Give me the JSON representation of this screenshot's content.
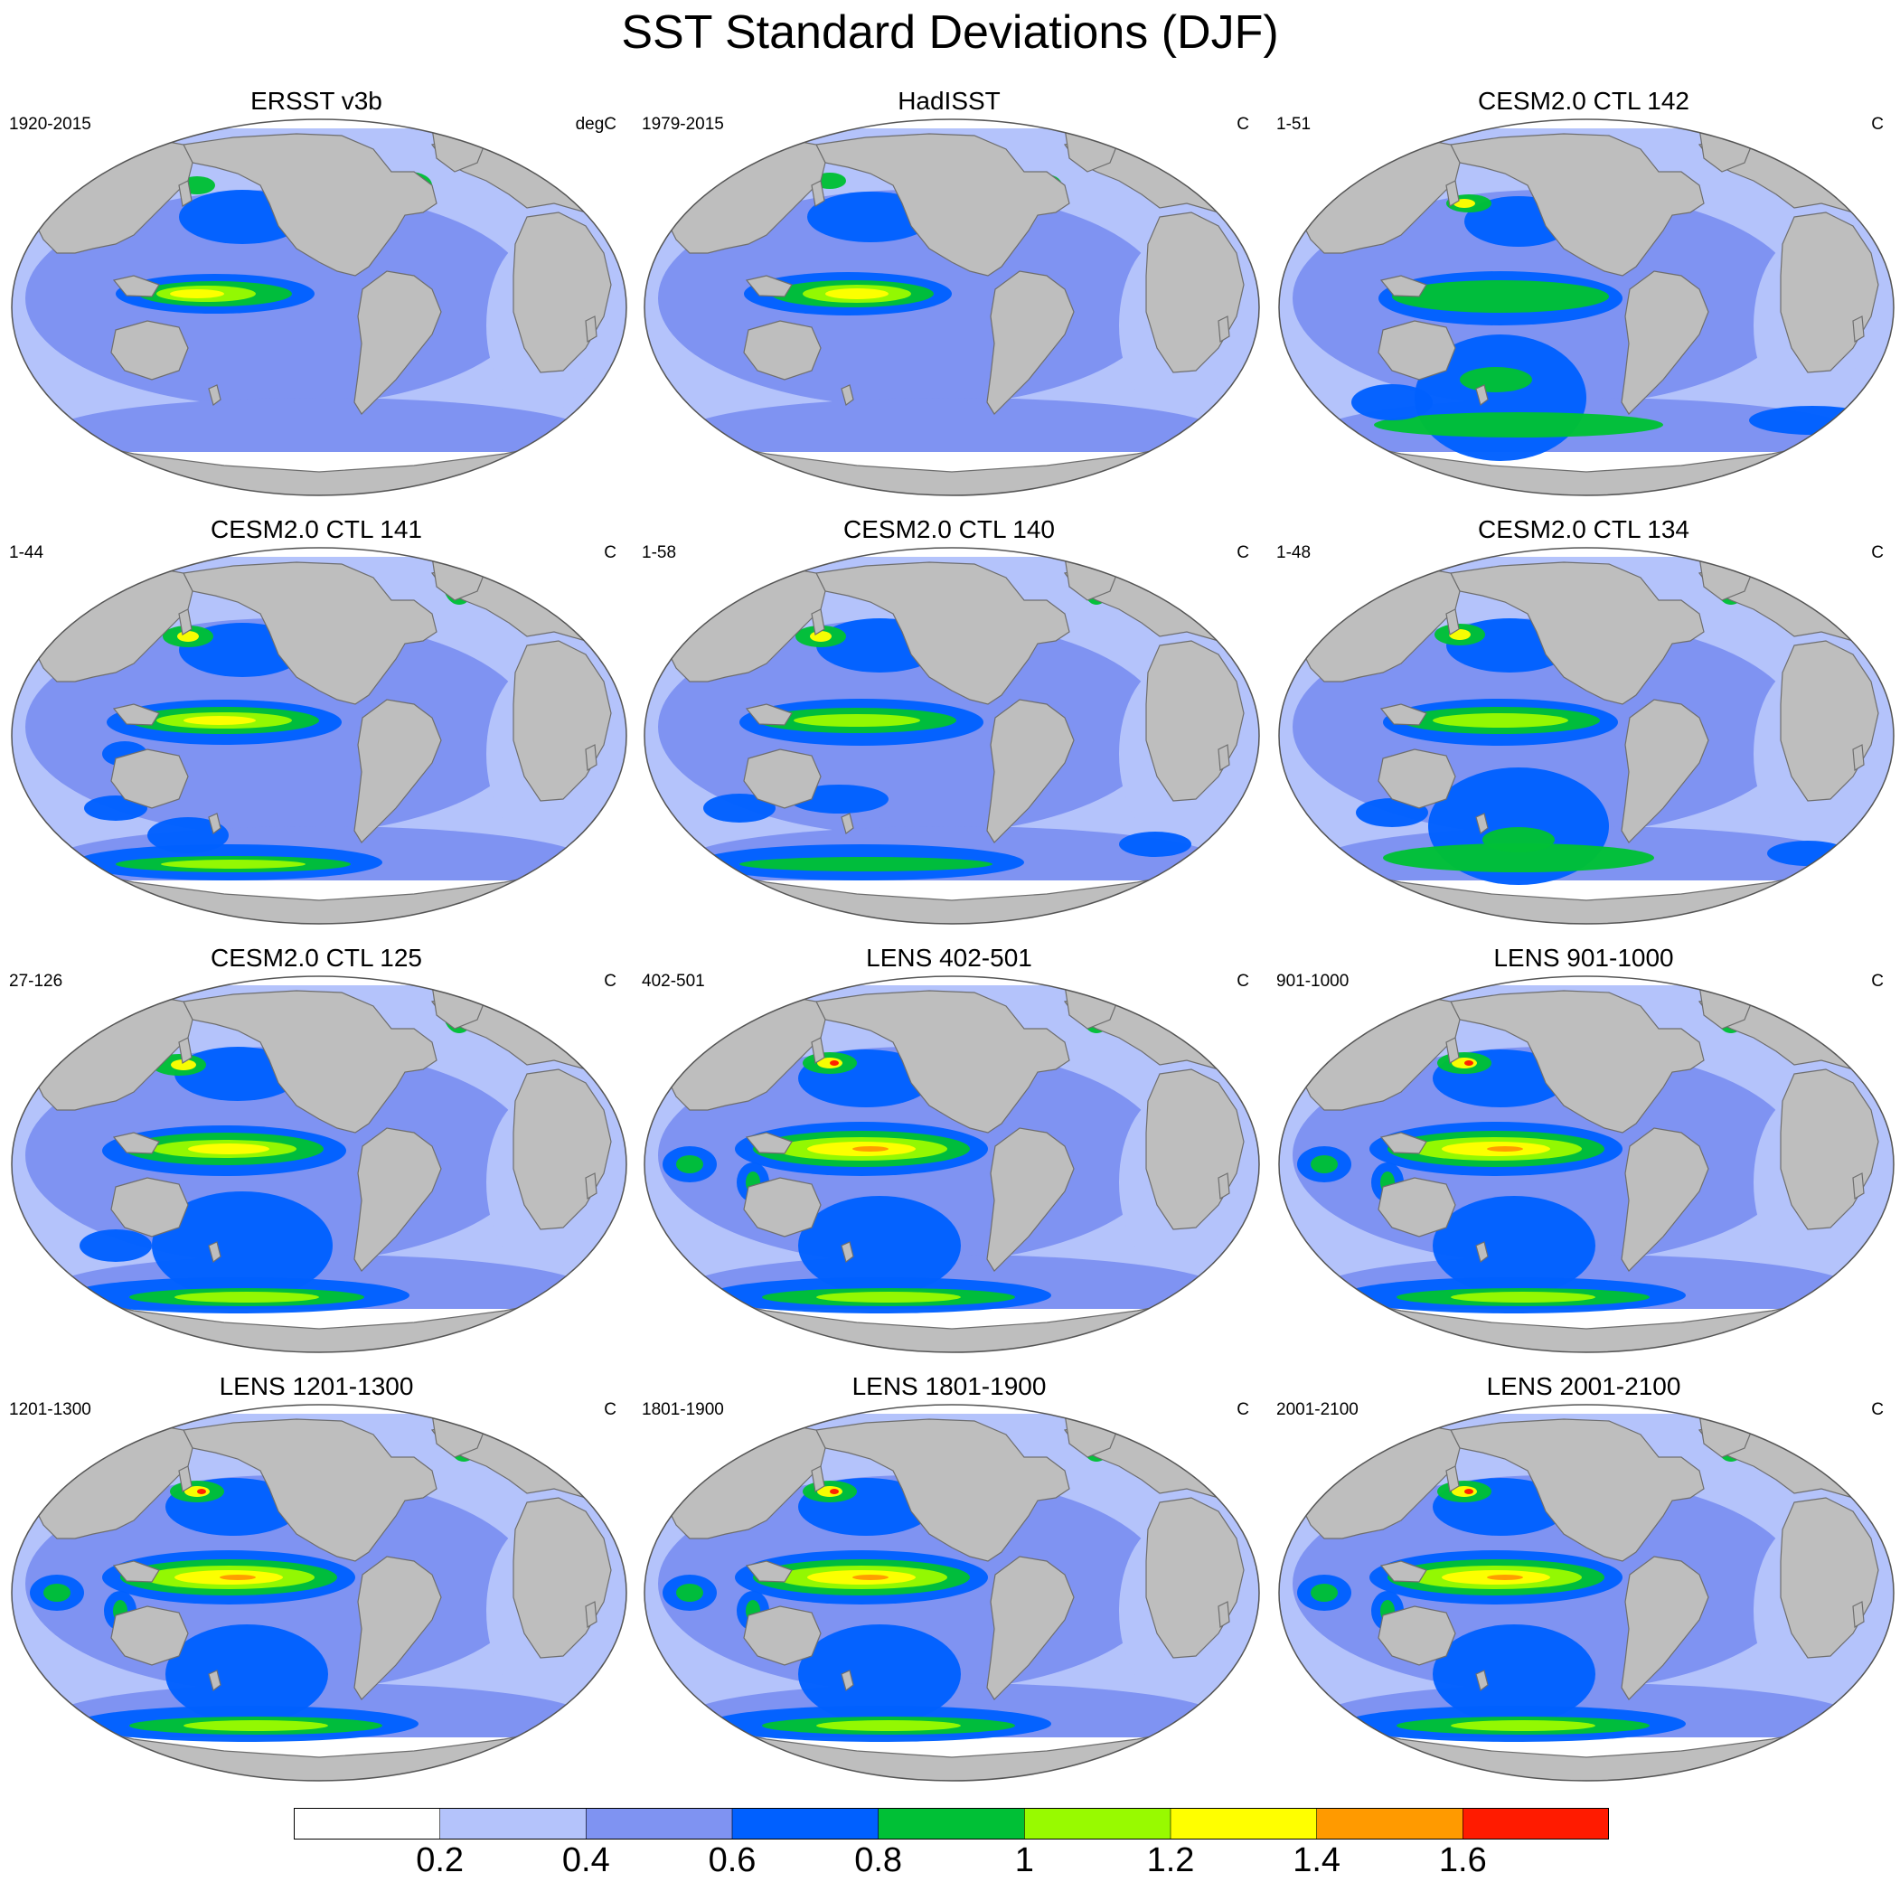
{
  "title": "SST Standard Deviations (DJF)",
  "panels": [
    {
      "title": "ERSST v3b",
      "left": "1920-2015",
      "right": "degC",
      "variant": "obs1"
    },
    {
      "title": "HadISST",
      "left": "1979-2015",
      "right": "C",
      "variant": "obs2"
    },
    {
      "title": "CESM2.0 CTL 142",
      "left": "1-51",
      "right": "C",
      "variant": "m1"
    },
    {
      "title": "CESM2.0 CTL 141",
      "left": "1-44",
      "right": "C",
      "variant": "m2"
    },
    {
      "title": "CESM2.0 CTL 140",
      "left": "1-58",
      "right": "C",
      "variant": "m3"
    },
    {
      "title": "CESM2.0 CTL 134",
      "left": "1-48",
      "right": "C",
      "variant": "m4"
    },
    {
      "title": "CESM2.0 CTL 125",
      "left": "27-126",
      "right": "C",
      "variant": "m5"
    },
    {
      "title": "LENS 402-501",
      "left": "402-501",
      "right": "C",
      "variant": "lens"
    },
    {
      "title": "LENS 901-1000",
      "left": "901-1000",
      "right": "C",
      "variant": "lens"
    },
    {
      "title": "LENS 1201-1300",
      "left": "1201-1300",
      "right": "C",
      "variant": "lens"
    },
    {
      "title": "LENS 1801-1900",
      "left": "1801-1900",
      "right": "C",
      "variant": "lens"
    },
    {
      "title": "LENS 2001-2100",
      "left": "2001-2100",
      "right": "C",
      "variant": "lens"
    }
  ],
  "colorbar": {
    "colors": [
      "#ffffff",
      "#b4c3fb",
      "#7f93f2",
      "#0060ff",
      "#00c036",
      "#98fa00",
      "#ffff00",
      "#ff9a00",
      "#ff1b00"
    ],
    "labels": [
      "0.2",
      "0.4",
      "0.6",
      "0.8",
      "1",
      "1.2",
      "1.4",
      "1.6"
    ]
  },
  "colors": {
    "land": "#bebebe",
    "coast": "#6e6e6e",
    "outline": "#555555"
  }
}
